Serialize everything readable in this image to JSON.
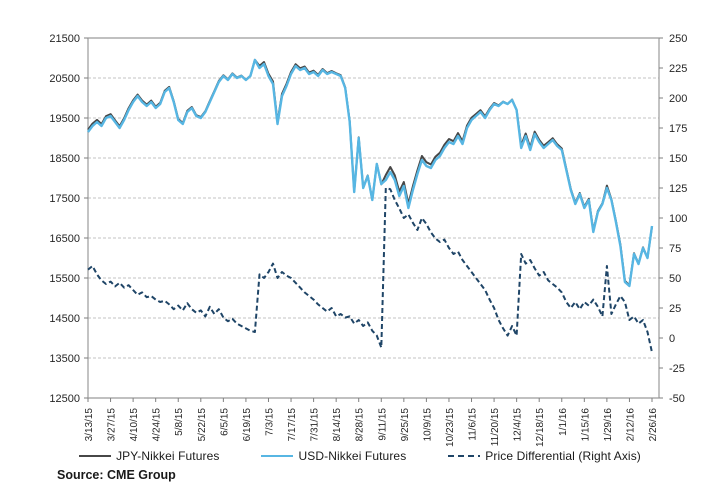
{
  "source_note": "Source: CME Group",
  "colors": {
    "jpy": "#474747",
    "usd": "#57b6e3",
    "diff": "#1f4567",
    "grid": "#c3c3c3",
    "axis": "#9b9b9b",
    "tick": "#7f7f7f",
    "text": "#262626"
  },
  "legend": {
    "items": [
      {
        "label": "JPY-Nikkei Futures",
        "style": "solid",
        "color_key": "jpy"
      },
      {
        "label": "USD-Nikkei Futures",
        "style": "solid",
        "color_key": "usd"
      },
      {
        "label": "Price Differential (Right Axis)",
        "style": "dashed",
        "color_key": "diff"
      }
    ]
  },
  "chart_data": {
    "type": "line",
    "title": "",
    "grid": "horizontal-dashed",
    "legend_position": "bottom",
    "x_tick_labels": [
      "3/13/15",
      "3/27/15",
      "4/10/15",
      "4/24/15",
      "5/8/15",
      "5/22/15",
      "6/5/15",
      "6/19/15",
      "7/3/15",
      "7/17/15",
      "7/31/15",
      "8/14/15",
      "8/28/15",
      "9/11/15",
      "9/25/15",
      "10/9/15",
      "10/23/15",
      "11/6/15",
      "11/20/15",
      "12/4/15",
      "12/18/15",
      "1/1/16",
      "1/15/16",
      "1/29/16",
      "2/12/16",
      "2/26/16"
    ],
    "points_per_tick_interval": 5,
    "left_axis": {
      "min": 12500,
      "max": 21500,
      "step": 1000,
      "labels": [
        "21500",
        "20500",
        "19500",
        "18500",
        "17500",
        "16500",
        "15500",
        "14500",
        "13500",
        "12500"
      ]
    },
    "right_axis": {
      "min": -50,
      "max": 250,
      "step": 25,
      "labels": [
        "250",
        "225",
        "200",
        "175",
        "150",
        "125",
        "100",
        "75",
        "50",
        "25",
        "0",
        "-25",
        "-50"
      ]
    },
    "series": [
      {
        "name": "JPY-Nikkei Futures",
        "axis": "left",
        "line": "solid",
        "color_key": "jpy",
        "values": [
          19207,
          19360,
          19453,
          19348,
          19545,
          19597,
          19443,
          19296,
          19492,
          19744,
          19940,
          20086,
          19938,
          19834,
          19935,
          19782,
          19880,
          20181,
          20278,
          19924,
          19477,
          19373,
          19679,
          19774,
          19571,
          19523,
          19668,
          19926,
          20170,
          20424,
          20567,
          20464,
          20616,
          20512,
          20560,
          20458,
          20556,
          20955,
          20803,
          20900,
          20605,
          20412,
          19400,
          20105,
          20352,
          20650,
          20846,
          20742,
          20788,
          20635,
          20682,
          20578,
          20725,
          20622,
          20675,
          20618,
          20570,
          20267,
          19418,
          17662,
          19015,
          17760,
          18063,
          17456,
          18352,
          17842,
          18075,
          18274,
          18065,
          17658,
          17900,
          17353,
          17796,
          18190,
          18550,
          18395,
          18338,
          18533,
          18630,
          18832,
          18975,
          18920,
          19122,
          18915,
          19310,
          19505,
          19600,
          19695,
          19540,
          19732,
          19875,
          19815,
          19908,
          19852,
          19960,
          19702,
          18820,
          19112,
          18765,
          19158,
          18952,
          18805,
          18898,
          18995,
          18842,
          18738,
          18230,
          17725,
          17380,
          17624,
          17280,
          17477,
          16682,
          17176,
          17368,
          17810,
          17470,
          16928,
          16335,
          15430,
          15315,
          16118,
          15862,
          16265,
          16005,
          16788
        ]
      },
      {
        "name": "USD-Nikkei Futures",
        "axis": "left",
        "line": "solid",
        "color_key": "usd",
        "values": [
          19150,
          19300,
          19400,
          19300,
          19500,
          19550,
          19400,
          19250,
          19450,
          19700,
          19900,
          20050,
          19900,
          19800,
          19900,
          19750,
          19850,
          20150,
          20250,
          19900,
          19450,
          19350,
          19650,
          19750,
          19550,
          19500,
          19650,
          19900,
          20150,
          20400,
          20550,
          20450,
          20600,
          20500,
          20550,
          20450,
          20550,
          20950,
          20750,
          20850,
          20550,
          20350,
          19350,
          20050,
          20300,
          20600,
          20800,
          20700,
          20750,
          20600,
          20650,
          20550,
          20700,
          20600,
          20650,
          20600,
          20550,
          20250,
          19400,
          17650,
          19000,
          17750,
          18050,
          17450,
          18350,
          17850,
          17950,
          18150,
          17950,
          17550,
          17800,
          17250,
          17700,
          18100,
          18450,
          18300,
          18250,
          18450,
          18550,
          18750,
          18900,
          18850,
          19050,
          18850,
          19250,
          19450,
          19550,
          19650,
          19500,
          19700,
          19850,
          19800,
          19900,
          19850,
          19950,
          19700,
          18750,
          19050,
          18700,
          19100,
          18900,
          18750,
          18850,
          18950,
          18800,
          18700,
          18200,
          17700,
          17350,
          17600,
          17250,
          17450,
          16650,
          17150,
          17350,
          17750,
          17450,
          16900,
          16300,
          15400,
          15300,
          16100,
          15850,
          16250,
          16000,
          16800
        ]
      },
      {
        "name": "Price Differential (Right Axis)",
        "axis": "right",
        "line": "dashed",
        "color_key": "diff",
        "values": [
          57,
          60,
          53,
          48,
          45,
          47,
          43,
          46,
          42,
          44,
          40,
          36,
          38,
          34,
          35,
          32,
          30,
          31,
          28,
          24,
          27,
          23,
          29,
          24,
          21,
          23,
          18,
          26,
          20,
          24,
          17,
          14,
          16,
          12,
          10,
          8,
          6,
          5,
          53,
          50,
          55,
          62,
          50,
          55,
          52,
          50,
          46,
          42,
          38,
          35,
          32,
          28,
          25,
          22,
          25,
          18,
          20,
          17,
          18,
          12,
          15,
          10,
          13,
          6,
          2,
          -8,
          125,
          124,
          115,
          108,
          100,
          103,
          96,
          90,
          100,
          95,
          88,
          83,
          80,
          82,
          75,
          70,
          72,
          65,
          60,
          55,
          50,
          45,
          40,
          32,
          25,
          15,
          8,
          2,
          10,
          2,
          70,
          62,
          65,
          58,
          52,
          55,
          48,
          45,
          42,
          38,
          30,
          25,
          30,
          24,
          30,
          27,
          32,
          26,
          18,
          60,
          20,
          28,
          35,
          30,
          15,
          18,
          12,
          15,
          5,
          -12
        ]
      }
    ]
  }
}
